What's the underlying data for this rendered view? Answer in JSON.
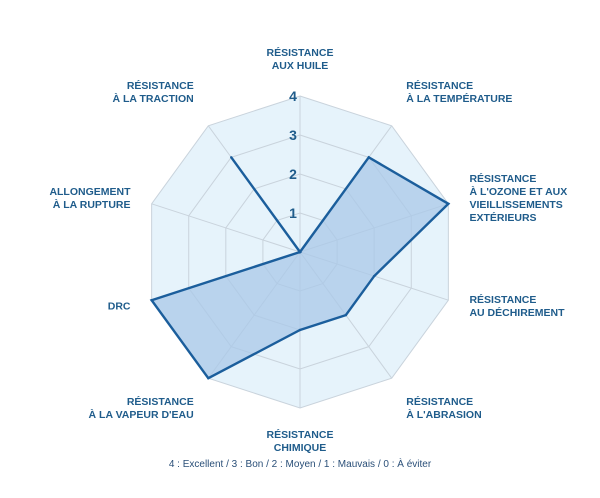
{
  "chart_data": {
    "type": "radar",
    "axes": [
      [
        "RÉSISTANCE",
        "AUX HUILE"
      ],
      [
        "RÉSISTANCE",
        "À LA TEMPÉRATURE"
      ],
      [
        "RÉSISTANCE",
        "À L'OZONE ET AUX",
        "VIEILLISSEMENTS",
        "EXTÉRIEURS"
      ],
      [
        "RÉSISTANCE",
        "AU DÉCHIREMENT"
      ],
      [
        "RÉSISTANCE",
        "À L'ABRASION"
      ],
      [
        "RÉSISTANCE",
        "CHIMIQUE"
      ],
      [
        "RÉSISTANCE",
        "À LA VAPEUR D'EAU"
      ],
      [
        "DRC"
      ],
      [
        "ALLONGEMENT",
        "À LA RUPTURE"
      ],
      [
        "RÉSISTANCE",
        "À LA TRACTION"
      ]
    ],
    "series": [
      {
        "values": [
          0,
          3,
          4,
          2,
          2,
          2,
          4,
          4,
          0,
          3
        ]
      }
    ],
    "rlim": [
      0,
      4
    ],
    "ticks": [
      "1",
      "2",
      "3",
      "4"
    ],
    "legend_text": "4 : Excellent / 3 : Bon / 2 :  Moyen / 1 : Mauvais / 0 : À éviter",
    "colors": {
      "line": "#1b5e9c",
      "fill": "#a9c8e8",
      "background": "#e6f3fb",
      "grid": "#c9d3dc",
      "text": "#1f5c8b"
    }
  }
}
